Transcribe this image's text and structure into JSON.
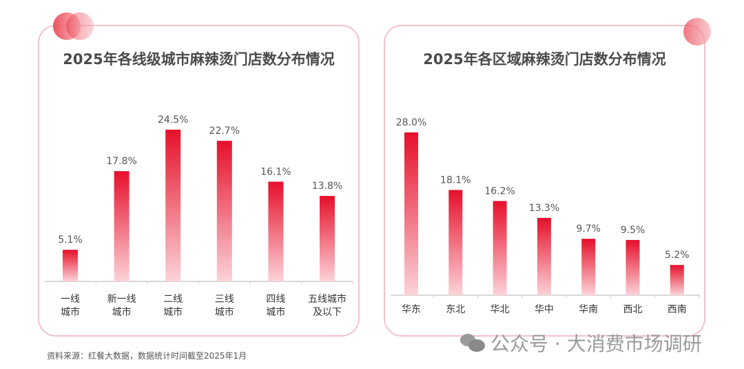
{
  "chart_data": [
    {
      "type": "bar",
      "title": "2025年各线级城市麻辣烫门店数分布情况",
      "categories": [
        [
          "一线",
          "城市"
        ],
        [
          "新一线",
          "城市"
        ],
        [
          "二线",
          "城市"
        ],
        [
          "三线",
          "城市"
        ],
        [
          "四线",
          "城市"
        ],
        [
          "五线城市",
          "及以下"
        ]
      ],
      "values": [
        5.1,
        17.8,
        24.5,
        22.7,
        16.1,
        13.8
      ],
      "labels": [
        "5.1%",
        "17.8%",
        "24.5%",
        "22.7%",
        "16.1%",
        "13.8%"
      ],
      "unit": "%",
      "grid": false
    },
    {
      "type": "bar",
      "title": "2025年各区域麻辣烫门店数分布情况",
      "categories": [
        [
          "华东"
        ],
        [
          "东北"
        ],
        [
          "华北"
        ],
        [
          "华中"
        ],
        [
          "华南"
        ],
        [
          "西北"
        ],
        [
          "西南"
        ]
      ],
      "values": [
        28.0,
        18.1,
        16.2,
        13.3,
        9.7,
        9.5,
        5.2
      ],
      "labels": [
        "28.0%",
        "18.1%",
        "16.2%",
        "13.3%",
        "9.7%",
        "9.5%",
        "5.2%"
      ],
      "unit": "%",
      "grid": false
    }
  ],
  "source": "资料来源：红餐大数据，数据统计时间截至2025年1月",
  "watermark": "公众号 · 大消费市场调研",
  "colors": {
    "bar_top": "#e60f2a",
    "bar_bottom": "#fcd3d8",
    "border": "#f2c3c8"
  }
}
